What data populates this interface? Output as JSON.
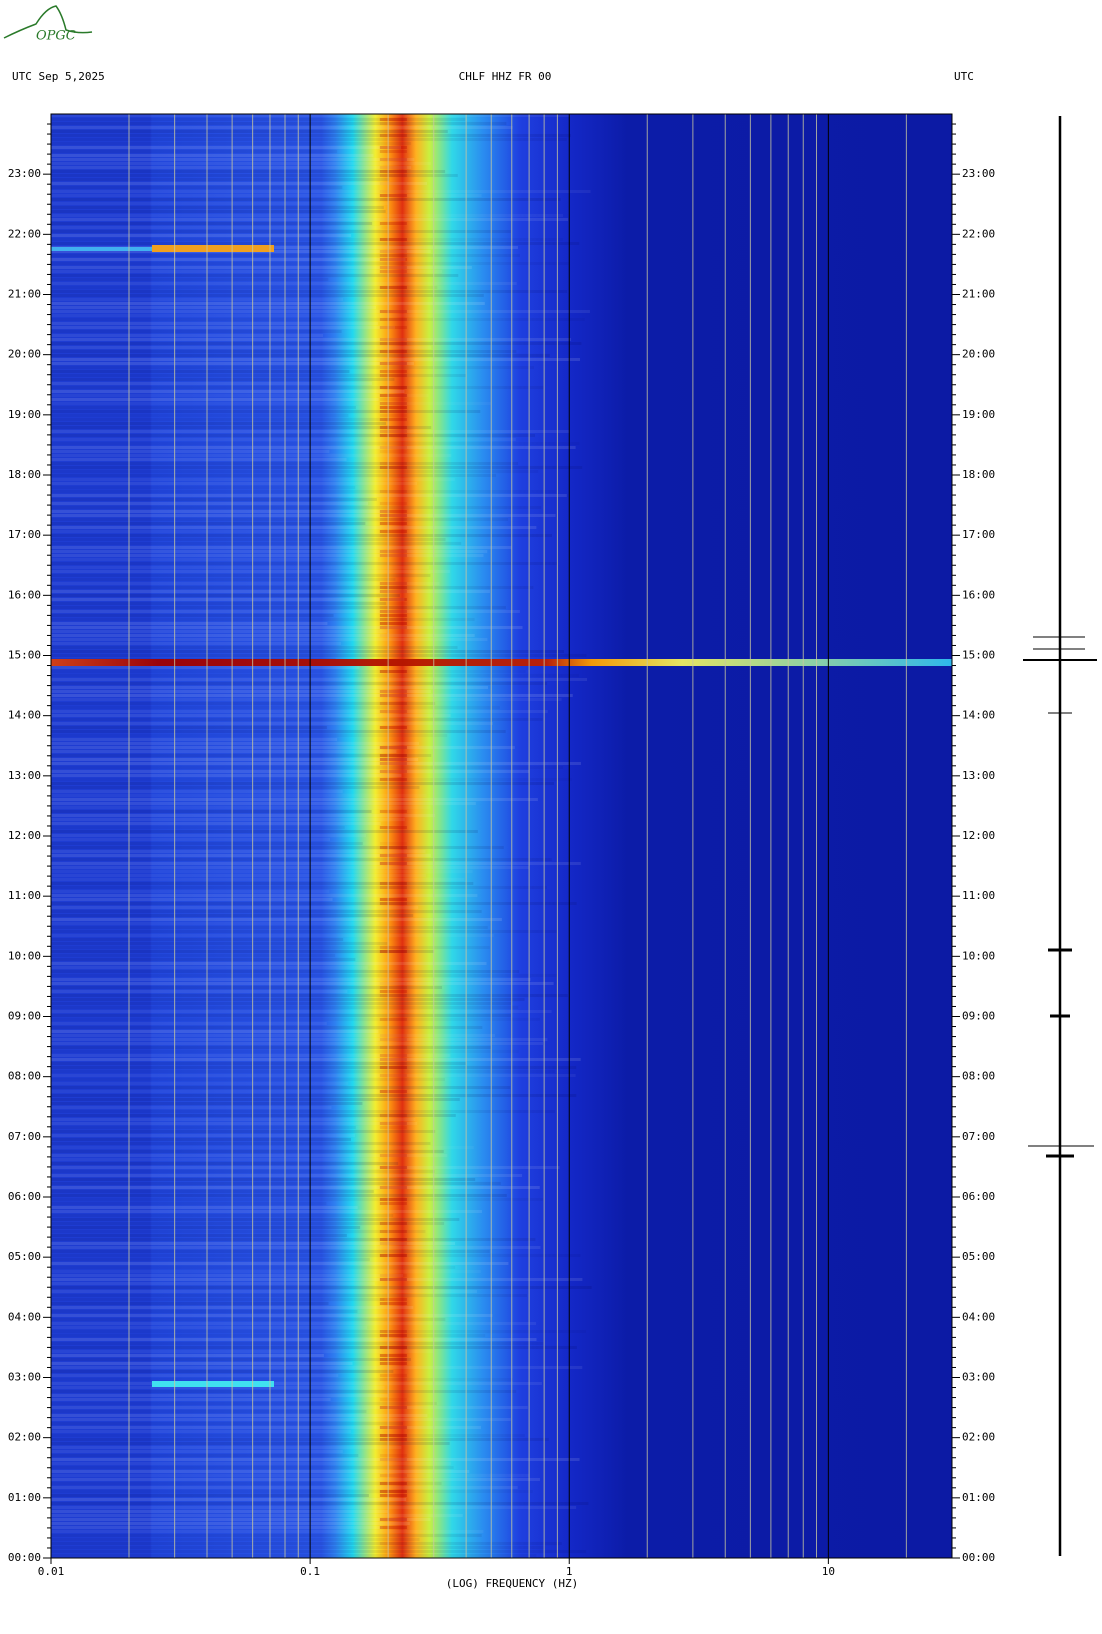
{
  "logo": "OPGC",
  "chart_data": {
    "type": "spectrogram",
    "header_left": "UTC  Sep 5,2025",
    "title": "CHLF HHZ FR 00",
    "header_right": "UTC",
    "xlabel": "(LOG) FREQUENCY (HZ)",
    "xscale": "log",
    "xlim": [
      0.01,
      30
    ],
    "xticks": [
      0.01,
      0.1,
      1,
      10
    ],
    "ylim": [
      0,
      24
    ],
    "yticks": [
      {
        "value": 0,
        "label": "00:00"
      },
      {
        "value": 1,
        "label": "01:00"
      },
      {
        "value": 2,
        "label": "02:00"
      },
      {
        "value": 3,
        "label": "03:00"
      },
      {
        "value": 4,
        "label": "04:00"
      },
      {
        "value": 5,
        "label": "05:00"
      },
      {
        "value": 6,
        "label": "06:00"
      },
      {
        "value": 7,
        "label": "07:00"
      },
      {
        "value": 8,
        "label": "08:00"
      },
      {
        "value": 9,
        "label": "09:00"
      },
      {
        "value": 10,
        "label": "10:00"
      },
      {
        "value": 11,
        "label": "11:00"
      },
      {
        "value": 12,
        "label": "12:00"
      },
      {
        "value": 13,
        "label": "13:00"
      },
      {
        "value": 14,
        "label": "14:00"
      },
      {
        "value": 15,
        "label": "15:00"
      },
      {
        "value": 16,
        "label": "16:00"
      },
      {
        "value": 17,
        "label": "17:00"
      },
      {
        "value": 18,
        "label": "18:00"
      },
      {
        "value": 19,
        "label": "19:00"
      },
      {
        "value": 20,
        "label": "20:00"
      },
      {
        "value": 21,
        "label": "21:00"
      },
      {
        "value": 22,
        "label": "22:00"
      },
      {
        "value": 23,
        "label": "23:00"
      }
    ],
    "grid": true
  }
}
